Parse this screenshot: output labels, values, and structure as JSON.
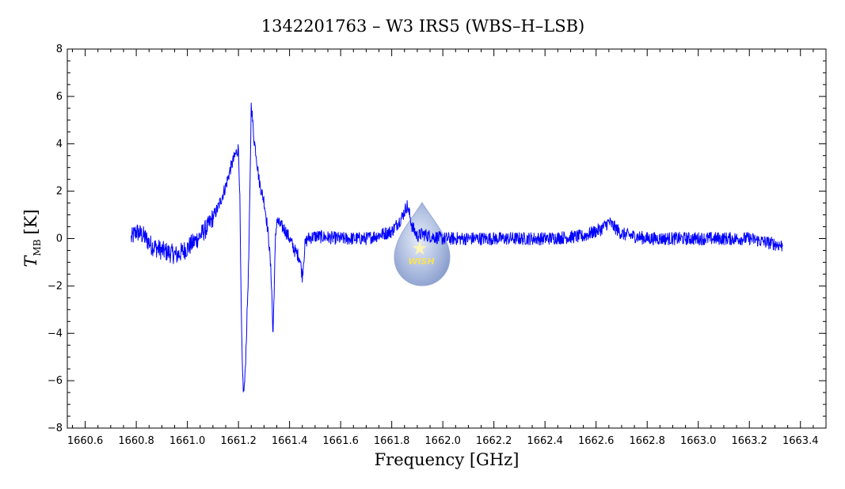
{
  "chart_data": {
    "type": "line",
    "title": "1342201763 – W3 IRS5 (WBS–H–LSB)",
    "xlabel": "Frequency [GHz]",
    "ylabel_symbol": "T",
    "ylabel_subscript": "MB",
    "ylabel_unit": "[K]",
    "xlim": [
      1660.53,
      1663.5
    ],
    "ylim": [
      -8,
      8
    ],
    "x_ticks": [
      "1660.6",
      "1660.8",
      "1661.0",
      "1661.2",
      "1661.4",
      "1661.6",
      "1661.8",
      "1662.0",
      "1662.2",
      "1662.4",
      "1662.6",
      "1662.8",
      "1663.0",
      "1663.2",
      "1663.4"
    ],
    "y_ticks": [
      "8",
      "6",
      "4",
      "2",
      "0",
      "−2",
      "−4",
      "−6",
      "−8"
    ],
    "grid": false,
    "legend": "none",
    "series_color": "#0000ff",
    "series": [
      {
        "x": [
          1660.78,
          1660.8,
          1660.83,
          1660.86,
          1660.9,
          1660.93,
          1660.96,
          1661.0,
          1661.04,
          1661.08,
          1661.12,
          1661.15,
          1661.17,
          1661.19,
          1661.2,
          1661.205,
          1661.21,
          1661.215,
          1661.22,
          1661.225,
          1661.23,
          1661.24,
          1661.245,
          1661.25,
          1661.255,
          1661.26,
          1661.27,
          1661.28,
          1661.29,
          1661.3,
          1661.31,
          1661.32,
          1661.33,
          1661.335,
          1661.34,
          1661.345,
          1661.35,
          1661.36,
          1661.38,
          1661.4,
          1661.42,
          1661.44,
          1661.45,
          1661.46,
          1661.47,
          1661.5,
          1661.6,
          1661.7,
          1661.8,
          1661.84,
          1661.86,
          1661.87,
          1661.88,
          1661.9,
          1661.92,
          1661.95,
          1662.0,
          1662.2,
          1662.4,
          1662.55,
          1662.62,
          1662.65,
          1662.67,
          1662.7,
          1662.75,
          1662.8,
          1663.0,
          1663.2,
          1663.33
        ],
        "y": [
          0.0,
          0.3,
          0.1,
          -0.3,
          -0.5,
          -0.6,
          -0.7,
          -0.4,
          0.0,
          0.5,
          1.3,
          2.2,
          3.0,
          3.6,
          3.8,
          2.0,
          -2.5,
          -5.5,
          -6.5,
          -6.0,
          -4.5,
          -1.0,
          2.0,
          5.8,
          5.0,
          4.3,
          3.5,
          2.5,
          2.0,
          1.6,
          0.8,
          -0.2,
          -2.0,
          -4.2,
          -2.0,
          0.0,
          0.8,
          0.6,
          0.4,
          0.0,
          -0.5,
          -0.8,
          -1.6,
          -0.3,
          0.0,
          0.1,
          0.0,
          0.0,
          0.3,
          0.9,
          1.4,
          1.0,
          0.5,
          0.1,
          0.2,
          0.1,
          0.0,
          0.0,
          0.0,
          0.1,
          0.4,
          0.7,
          0.5,
          0.2,
          0.1,
          0.0,
          0.0,
          0.0,
          -0.3
        ]
      }
    ]
  },
  "logo": {
    "text": "WISH",
    "colors": {
      "drop": "#9fb2d8",
      "drop_edge": "#6f86bd",
      "text": "#f5e25a"
    }
  }
}
